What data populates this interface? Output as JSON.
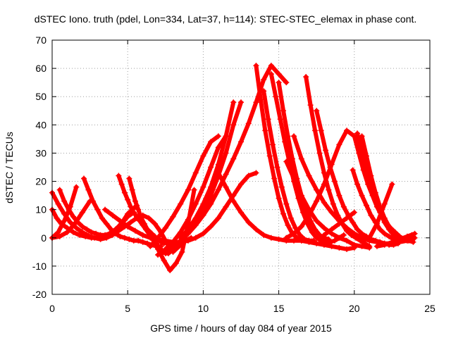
{
  "chart_data": {
    "type": "scatter",
    "title": "dSTEC Iono. truth (pdel, Lon=334, Lat=37, h=114): STEC-STEC_elemax in phase cont.",
    "xlabel": "GPS time / hours of day 084 of year 2015",
    "ylabel": "dSTEC  / TECUs",
    "xlim": [
      0,
      25
    ],
    "ylim": [
      -20,
      70
    ],
    "x_ticks": [
      0,
      5,
      10,
      15,
      20,
      25
    ],
    "y_ticks": [
      -20,
      -10,
      0,
      10,
      20,
      30,
      40,
      50,
      60,
      70
    ],
    "x_tick_labels": [
      "0",
      "5",
      "10",
      "15",
      "20",
      "25"
    ],
    "y_tick_labels": [
      "-20",
      "-10",
      "0",
      "10",
      "20",
      "30",
      "40",
      "50",
      "60",
      "70"
    ],
    "grid": true,
    "marker": "+",
    "color": "#ff0000",
    "series": [
      {
        "x": [
          0.0,
          0.4,
          0.8,
          1.2,
          1.6,
          2.0,
          2.4,
          2.8,
          3.2,
          3.6,
          4.0,
          4.4,
          4.8,
          5.2,
          5.6,
          6.0,
          6.4,
          6.8,
          7.2,
          7.6,
          8.0,
          8.4,
          8.8,
          9.2
        ],
        "y": [
          16.0,
          12.0,
          8.5,
          5.5,
          3.5,
          2.0,
          0.8,
          0.0,
          -0.5,
          0.0,
          1.0,
          2.5,
          4.0,
          5.5,
          7.0,
          8.0,
          7.0,
          5.0,
          2.0,
          -2.0,
          -5.0,
          -3.0,
          -1.0,
          0.0
        ]
      },
      {
        "x": [
          0.0,
          0.3,
          0.6,
          1.0,
          1.4,
          1.8,
          2.2,
          2.6,
          3.0,
          3.4,
          3.8,
          4.2,
          4.6,
          5.0,
          5.4,
          5.8,
          6.2,
          6.6,
          7.0,
          7.4,
          7.8,
          8.2,
          8.6,
          9.0,
          9.4
        ],
        "y": [
          10.0,
          7.0,
          5.0,
          3.5,
          2.0,
          1.0,
          0.5,
          0.0,
          0.0,
          0.5,
          1.5,
          3.0,
          5.0,
          7.5,
          9.0,
          6.0,
          3.0,
          0.0,
          -4.0,
          -8.0,
          -11.5,
          -9.0,
          -5.0,
          5.0,
          17.0
        ]
      },
      {
        "x": [
          0.0,
          0.5,
          1.0,
          1.5,
          2.0,
          2.5
        ],
        "y": [
          0.0,
          0.5,
          2.0,
          5.0,
          9.0,
          13.0
        ]
      },
      {
        "x": [
          0.5,
          0.8,
          1.1,
          1.4,
          1.7,
          2.0,
          2.3,
          2.6,
          2.9,
          3.2,
          3.5,
          3.8,
          4.1,
          4.4,
          4.7,
          5.0,
          5.3,
          5.6
        ],
        "y": [
          17.0,
          13.0,
          10.0,
          7.5,
          5.5,
          4.0,
          3.0,
          2.0,
          1.5,
          1.0,
          1.0,
          1.5,
          2.5,
          4.0,
          6.0,
          8.5,
          10.0,
          11.5
        ]
      },
      {
        "x": [
          0.0,
          0.4,
          0.8,
          1.2,
          1.6
        ],
        "y": [
          0.0,
          2.0,
          6.0,
          11.0,
          18.0
        ]
      },
      {
        "x": [
          2.1,
          2.4,
          2.7,
          3.0,
          3.3,
          3.6,
          3.9,
          4.2,
          4.5,
          4.8,
          5.1,
          5.4,
          5.7,
          6.0,
          6.3,
          6.6,
          6.9,
          7.2
        ],
        "y": [
          21.0,
          17.0,
          13.0,
          10.0,
          7.0,
          5.0,
          3.0,
          1.5,
          0.5,
          0.0,
          -0.5,
          -1.0,
          -1.0,
          -1.5,
          -2.0,
          -2.5,
          -3.0,
          -3.0
        ]
      },
      {
        "x": [
          4.4,
          4.6,
          4.8,
          5.0,
          5.2,
          5.4,
          5.6,
          5.8,
          6.0,
          6.2,
          6.4,
          6.6,
          6.8,
          7.0,
          7.2,
          7.4
        ],
        "y": [
          22.0,
          19.0,
          16.0,
          13.5,
          11.0,
          9.0,
          7.5,
          6.0,
          4.5,
          3.5,
          2.5,
          1.5,
          0.5,
          -0.5,
          -1.5,
          -2.0
        ]
      },
      {
        "x": [
          5.1,
          5.3,
          5.5,
          5.7,
          5.9,
          6.1,
          6.3,
          6.5,
          6.7,
          6.9,
          7.1,
          7.3,
          7.5,
          7.7,
          8.0,
          8.3
        ],
        "y": [
          21.0,
          17.0,
          13.0,
          10.0,
          7.0,
          5.0,
          3.0,
          1.0,
          -0.5,
          -2.0,
          -3.5,
          -4.5,
          -5.5,
          -5.5,
          -4.0,
          -2.0
        ]
      },
      {
        "x": [
          3.5,
          4.0,
          4.5,
          5.0,
          5.5,
          6.0,
          6.5,
          7.0,
          7.5,
          8.0,
          8.5,
          9.0,
          9.5,
          10.0,
          10.5,
          11.0,
          11.5,
          12.0,
          12.5,
          13.0,
          13.5
        ],
        "y": [
          10.0,
          8.0,
          6.0,
          4.0,
          2.5,
          1.0,
          0.0,
          -0.5,
          -1.0,
          -1.5,
          -1.5,
          -1.0,
          0.0,
          1.5,
          4.0,
          7.0,
          11.0,
          15.0,
          19.0,
          22.0,
          23.0
        ]
      },
      {
        "x": [
          7.0,
          7.5,
          8.0,
          8.5,
          9.0,
          9.5,
          10.0,
          10.5,
          11.0,
          11.5,
          12.0,
          12.5,
          13.0,
          13.5,
          14.0,
          14.5,
          15.0,
          15.5
        ],
        "y": [
          -6.0,
          -5.0,
          -3.0,
          -1.0,
          1.5,
          4.5,
          8.0,
          12.0,
          17.0,
          22.5,
          28.0,
          34.0,
          40.5,
          48.0,
          56.0,
          61.0,
          58.0,
          55.0
        ]
      },
      {
        "x": [
          6.5,
          7.0,
          7.5,
          8.0,
          8.5,
          9.0,
          9.5,
          10.0,
          10.5,
          11.0
        ],
        "y": [
          -3.0,
          0.0,
          3.5,
          7.5,
          12.0,
          17.0,
          23.0,
          29.0,
          34.0,
          36.0
        ]
      },
      {
        "x": [
          7.5,
          8.0,
          8.5,
          9.0,
          9.5,
          10.0,
          10.5,
          11.0,
          11.5
        ],
        "y": [
          -4.0,
          -1.5,
          2.0,
          6.5,
          12.0,
          18.0,
          25.0,
          32.0,
          36.0
        ]
      },
      {
        "x": [
          8.5,
          9.0,
          9.5,
          10.0,
          10.5,
          11.0,
          11.5,
          12.0
        ],
        "y": [
          0.0,
          3.0,
          7.0,
          12.0,
          18.0,
          26.0,
          36.0,
          48.0
        ]
      },
      {
        "x": [
          9.5,
          10.0,
          10.5,
          11.0,
          11.5,
          12.0,
          12.5
        ],
        "y": [
          6.0,
          10.0,
          15.0,
          22.0,
          30.0,
          40.0,
          48.0
        ]
      },
      {
        "x": [
          11.0,
          11.5,
          12.0,
          12.5,
          13.0,
          13.5,
          14.0,
          14.5,
          15.0,
          15.5,
          16.0,
          16.5,
          17.0,
          17.5,
          18.0,
          18.5,
          19.0,
          19.5,
          20.0
        ],
        "y": [
          23.0,
          18.0,
          13.0,
          9.0,
          5.5,
          3.0,
          1.0,
          0.0,
          -0.5,
          -1.0,
          -1.0,
          -1.0,
          -1.5,
          -2.0,
          -2.5,
          -3.0,
          -3.5,
          -4.0,
          -3.5
        ]
      },
      {
        "x": [
          13.5,
          13.8,
          14.1,
          14.4,
          14.7,
          15.0,
          15.3,
          15.6,
          15.9,
          16.2,
          16.5
        ],
        "y": [
          61.0,
          49.0,
          38.0,
          29.0,
          21.0,
          14.0,
          8.5,
          4.5,
          1.5,
          0.0,
          -1.0
        ]
      },
      {
        "x": [
          14.5,
          14.8,
          15.1,
          15.4,
          15.7,
          16.0,
          16.3,
          16.6,
          16.9,
          17.2,
          17.5,
          17.8,
          18.1,
          18.4,
          18.7,
          19.0,
          19.3
        ],
        "y": [
          58.0,
          50.0,
          42.0,
          34.0,
          27.0,
          20.0,
          14.0,
          9.0,
          5.0,
          2.0,
          0.0,
          -1.0,
          -1.5,
          -1.5,
          -1.0,
          0.0,
          1.0
        ]
      },
      {
        "x": [
          15.0,
          15.3,
          15.6,
          15.9,
          16.2,
          16.5,
          16.8,
          17.1,
          17.4,
          17.7,
          18.0,
          18.3
        ],
        "y": [
          55.0,
          45.0,
          36.0,
          28.0,
          21.0,
          15.0,
          10.0,
          6.0,
          3.0,
          1.0,
          0.0,
          -0.5
        ]
      },
      {
        "x": [
          14.0,
          14.3,
          14.6,
          14.9,
          15.2,
          15.5,
          15.8,
          16.1,
          16.4,
          16.7,
          17.0,
          17.3
        ],
        "y": [
          52.0,
          42.0,
          33.0,
          25.0,
          18.0,
          12.0,
          7.0,
          3.5,
          1.0,
          -0.5,
          -1.0,
          -1.0
        ]
      },
      {
        "x": [
          15.5,
          16.0,
          16.5,
          17.0,
          17.5,
          18.0,
          18.5,
          19.0,
          19.5,
          20.0,
          20.5,
          21.0
        ],
        "y": [
          27.0,
          21.0,
          15.0,
          10.0,
          6.0,
          3.5,
          1.5,
          0.0,
          -1.0,
          -2.5,
          -3.0,
          -3.5
        ]
      },
      {
        "x": [
          16.8,
          17.1,
          17.4,
          17.7,
          18.0,
          18.3,
          18.6,
          18.9,
          19.2,
          19.5,
          19.8,
          20.1,
          20.4,
          20.7,
          21.0
        ],
        "y": [
          57.0,
          47.0,
          38.0,
          30.0,
          23.0,
          17.0,
          12.0,
          8.0,
          5.0,
          2.5,
          1.0,
          0.0,
          -1.0,
          -2.0,
          -3.0
        ]
      },
      {
        "x": [
          17.5,
          17.8,
          18.1,
          18.4,
          18.7,
          19.0,
          19.3,
          19.6,
          19.9,
          20.2,
          20.5,
          20.8,
          21.1,
          21.4,
          21.7,
          22.0,
          22.3,
          22.6,
          22.9
        ],
        "y": [
          45.0,
          38.0,
          31.0,
          25.0,
          20.0,
          15.0,
          11.0,
          8.0,
          5.5,
          3.0,
          1.5,
          0.5,
          -0.5,
          -1.0,
          -1.5,
          -2.0,
          -2.5,
          -2.5,
          -2.0
        ]
      },
      {
        "x": [
          16.0,
          16.5,
          17.0,
          17.5,
          18.0,
          18.5,
          19.0,
          19.5,
          20.0,
          20.5,
          21.0,
          21.5,
          22.0,
          22.5,
          23.0,
          23.5,
          24.0
        ],
        "y": [
          36.0,
          28.0,
          22.0,
          17.0,
          12.5,
          9.0,
          6.0,
          3.5,
          1.5,
          0.0,
          -1.0,
          -1.5,
          -2.0,
          -2.0,
          -1.5,
          -1.0,
          0.0
        ]
      },
      {
        "x": [
          15.5,
          16.0,
          16.5,
          17.0,
          17.5,
          18.0,
          18.5,
          19.0,
          19.5,
          20.0
        ],
        "y": [
          0.0,
          1.5,
          4.0,
          8.0,
          13.0,
          19.0,
          26.0,
          33.0,
          38.0,
          36.0
        ]
      },
      {
        "x": [
          18.0,
          18.5,
          19.0,
          19.5,
          20.0
        ],
        "y": [
          1.0,
          3.0,
          5.0,
          7.0,
          9.0
        ]
      },
      {
        "x": [
          20.0,
          20.3,
          20.6,
          20.9,
          21.2,
          21.5,
          21.8,
          22.1,
          22.4,
          22.7,
          23.0,
          23.3,
          23.6,
          23.9
        ],
        "y": [
          36.0,
          30.0,
          24.0,
          19.0,
          15.0,
          11.0,
          8.0,
          5.5,
          3.5,
          2.0,
          0.5,
          -0.5,
          -1.0,
          -1.5
        ]
      },
      {
        "x": [
          20.2,
          20.5,
          20.8,
          21.1,
          21.4,
          21.7,
          22.0,
          22.3,
          22.6,
          22.9,
          23.2,
          23.5,
          23.8
        ],
        "y": [
          37.0,
          30.0,
          24.0,
          18.0,
          13.0,
          9.0,
          5.5,
          3.0,
          1.0,
          0.0,
          -0.5,
          -1.0,
          -1.0
        ]
      },
      {
        "x": [
          20.5,
          20.8,
          21.1,
          21.4,
          21.7,
          22.0,
          22.3
        ],
        "y": [
          36.0,
          29.0,
          22.0,
          16.0,
          11.0,
          7.0,
          4.0
        ]
      },
      {
        "x": [
          19.9,
          20.2,
          20.5,
          20.8,
          21.1,
          21.4,
          21.7,
          22.0,
          22.3,
          22.6,
          22.9,
          23.2,
          23.5,
          23.8
        ],
        "y": [
          24.0,
          19.0,
          15.0,
          11.5,
          8.0,
          5.5,
          3.0,
          1.5,
          0.5,
          -0.5,
          -1.0,
          -1.0,
          0.0,
          1.0
        ]
      },
      {
        "x": [
          21.0,
          21.5,
          22.0,
          22.5
        ],
        "y": [
          0.0,
          5.0,
          12.0,
          19.0
        ]
      },
      {
        "x": [
          21.5,
          22.0,
          22.5,
          23.0,
          23.5,
          24.0
        ],
        "y": [
          -3.0,
          -2.5,
          -1.5,
          -0.5,
          0.5,
          1.5
        ]
      }
    ]
  }
}
